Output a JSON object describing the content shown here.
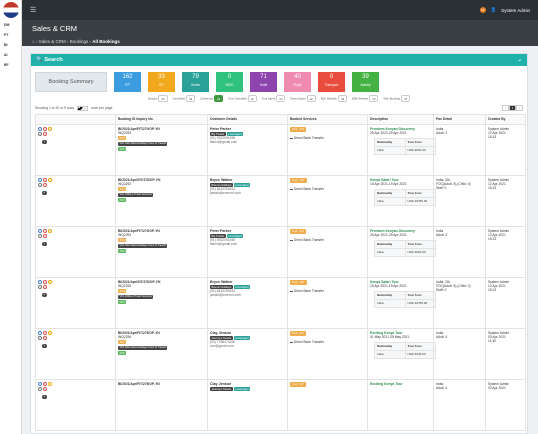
{
  "sidebar": {
    "items": [
      "DM",
      "PT",
      "BI",
      "AI",
      "BF"
    ]
  },
  "topbar": {
    "notif_count": "18",
    "user": "System Admin"
  },
  "header": {
    "title": "Sales & CRM",
    "crumb_1": "Sales & CRM",
    "crumb_2": "Bookings",
    "crumb_3": "All Bookings"
  },
  "search": {
    "label": "Search"
  },
  "summary": {
    "label": "Booking Summary",
    "stats": [
      {
        "num": "162",
        "label": "FIT",
        "color": "#3b9de0"
      },
      {
        "num": "33",
        "label": "GIT",
        "color": "#f2a81d"
      },
      {
        "num": "79",
        "label": "Series",
        "color": "#2aa198"
      },
      {
        "num": "0",
        "label": "MICE",
        "color": "#2ec27e"
      },
      {
        "num": "71",
        "label": "Hotel",
        "color": "#8e44ad"
      },
      {
        "num": "40",
        "label": "Flight",
        "color": "#f08bb0"
      },
      {
        "num": "0",
        "label": "Transport",
        "color": "#e74c3c"
      },
      {
        "num": "39",
        "label": "Activity",
        "color": "#43b243"
      }
    ]
  },
  "filters": [
    {
      "label": "Enquiry",
      "pill": "All"
    },
    {
      "label": "Cancelled",
      "pill": "All"
    },
    {
      "label": "Confirmed",
      "pill": "All",
      "active": true
    },
    {
      "label": "Tour Cancelled",
      "pill": "All"
    },
    {
      "label": "Tour Agent",
      "pill": "All"
    },
    {
      "label": "Direct Agent",
      "pill": "All"
    },
    {
      "label": "B2C Website",
      "pill": "All"
    },
    {
      "label": "B2B Website",
      "pill": "All"
    },
    {
      "label": "Web Booking",
      "pill": "All"
    }
  ],
  "list": {
    "showing": "Showing 1 to 20 of 9 rows",
    "per_page": "20",
    "rows_per_page": "rows per page",
    "page": "1",
    "prev": "‹",
    "next": "›"
  },
  "table": {
    "headers": [
      "",
      "Booking ID Inquiry No.",
      "Customer Details",
      "Booked Services",
      "Description",
      "Pax Detail",
      "Created By"
    ],
    "rows": [
      {
        "booking_id": "BI/2021/Apr/FIT/270/OP-YN",
        "inquiry": "INQ2293",
        "tag_a": "XXX",
        "agency": "VKL Star Satra Holidays Tours & Travels",
        "agency_tag": "XXX",
        "name": "Peter Parker",
        "ctag1": "Big Travels",
        "ctag2": "Local Agent",
        "phone": "(91) 9922091456",
        "email": "flaircd@gmail.com",
        "svc": "Tour - FIT",
        "pay": "Direct Bank Transfer",
        "pkg": "Premium Kenyan Discovery",
        "dates": "25 Apr 2021-29 Apr 2021",
        "nat_label": "Nationality",
        "cost_label": "Tour Cost",
        "nat": "India",
        "cost": "USD 3062.00",
        "pax": "India\nAdult: 2",
        "created": "System Admin\n12 Apr 2021\n15:13"
      },
      {
        "booking_id": "BI/2021/Apr/GIT/278/OP-YN",
        "inquiry": "INQ2292",
        "tag_a": "XXX",
        "agency": "VKL Infitime Travel Services",
        "agency_tag": "XXX",
        "name": "Bryce Walker",
        "ctag1": "Bremen Holidays",
        "ctag2": "Local Agent",
        "phone": "(91) 8442254513",
        "email": "jamadi@evexon.com",
        "svc": "Tour - GIT",
        "pay": "Direct Bank Transfer",
        "pkg": "Kenya Safari Tour",
        "dates": "15 Apr 2021-19 Apr 2021",
        "nat_label": "Nationality",
        "cost_label": "Tour Cost",
        "nat": "India",
        "cost": "USD 36780.00",
        "pax": "India: 30L\nFOC(Adult: 3),(Child: 0)\nStaff: 0",
        "created": "System Admin\n12 Apr 2021\n15:13"
      },
      {
        "booking_id": "BI/2021/Apr/FIT/270/OP-YN",
        "inquiry": "INQ2293",
        "tag_a": "XXX",
        "agency": "VKL Star Satra Holidays Tours & Travels",
        "agency_tag": "XXX",
        "name": "Peter Parker",
        "ctag1": "Big Travels",
        "ctag2": "Local Agent",
        "phone": "(91) 9922091456",
        "email": "flaircd@gmail.com",
        "svc": "Tour - FIT",
        "pay": "Direct Bank Transfer",
        "pkg": "Premium Kenyan Discovery",
        "dates": "25 Apr 2021-29 Apr 2021",
        "nat_label": "Nationality",
        "cost_label": "Tour Cost",
        "nat": "India",
        "cost": "USD 3062.00",
        "pax": "India\nAdult: 2",
        "created": "System Admin\n12 Apr 2021\n15:13"
      },
      {
        "booking_id": "BI/2021/Apr/GIT/278/OP-YN",
        "inquiry": "INQ2292",
        "tag_a": "XXX",
        "agency": "VKL Infitime Travel Services",
        "agency_tag": "XXX",
        "name": "Bryce Walker",
        "ctag1": "Bremen Holidays",
        "ctag2": "Local Agent",
        "phone": "(91) 8442254513",
        "email": "jamadi@evexon.com",
        "svc": "Tour - GIT",
        "pay": "Direct Bank Transfer",
        "pkg": "Kenya Safari Tour",
        "dates": "15 Apr 2021-19 Apr 2021",
        "nat_label": "Nationality",
        "cost_label": "Tour Cost",
        "nat": "India",
        "cost": "USD 36780.00",
        "pax": "India: 30L\nFOC(Adult: 3),(Child: 0)\nStaff: 0",
        "created": "System Admin\n12 Apr 2021\n15:13"
      },
      {
        "booking_id": "BI/2021/Apr/FIT/276/OP-YN",
        "inquiry": "INQ2296",
        "tag_a": "XXX",
        "agency": "VKL Star Satra Holidays Tours & Travels",
        "agency_tag": "XXX",
        "name": "Clay Jenson",
        "ctag1": "Journeys Travels",
        "ctag2": "Local Agent",
        "phone": "(93) 7788474296",
        "email": "ceo@gmail.com",
        "svc": "Tour - FIT",
        "pay": "Direct Bank Transfer",
        "pkg": "Exciting Kenya Tour",
        "dates": "01 May 2021-05 May 2021",
        "nat_label": "Nationality",
        "cost_label": "Tour Cost",
        "nat": "India",
        "cost": "USD 3640.00",
        "pax": "India\nAdult: 4",
        "created": "System Admin\n03 Apr 2021\n11:40"
      },
      {
        "booking_id": "BI/2021/Apr/FIT/276/OP-YN",
        "inquiry": "",
        "tag_a": "",
        "agency": "",
        "agency_tag": "",
        "name": "Clay Jenson",
        "ctag1": "Journeys Travels",
        "ctag2": "Local Agent",
        "phone": "",
        "email": "",
        "svc": "Tour - FIT",
        "pay": "",
        "pkg": "Exciting Kenya Tour",
        "dates": "",
        "nat_label": "",
        "cost_label": "",
        "nat": "",
        "cost": "",
        "pax": "India\nAdult: 4",
        "created": "System Admin\n03 Apr 2021"
      }
    ]
  }
}
